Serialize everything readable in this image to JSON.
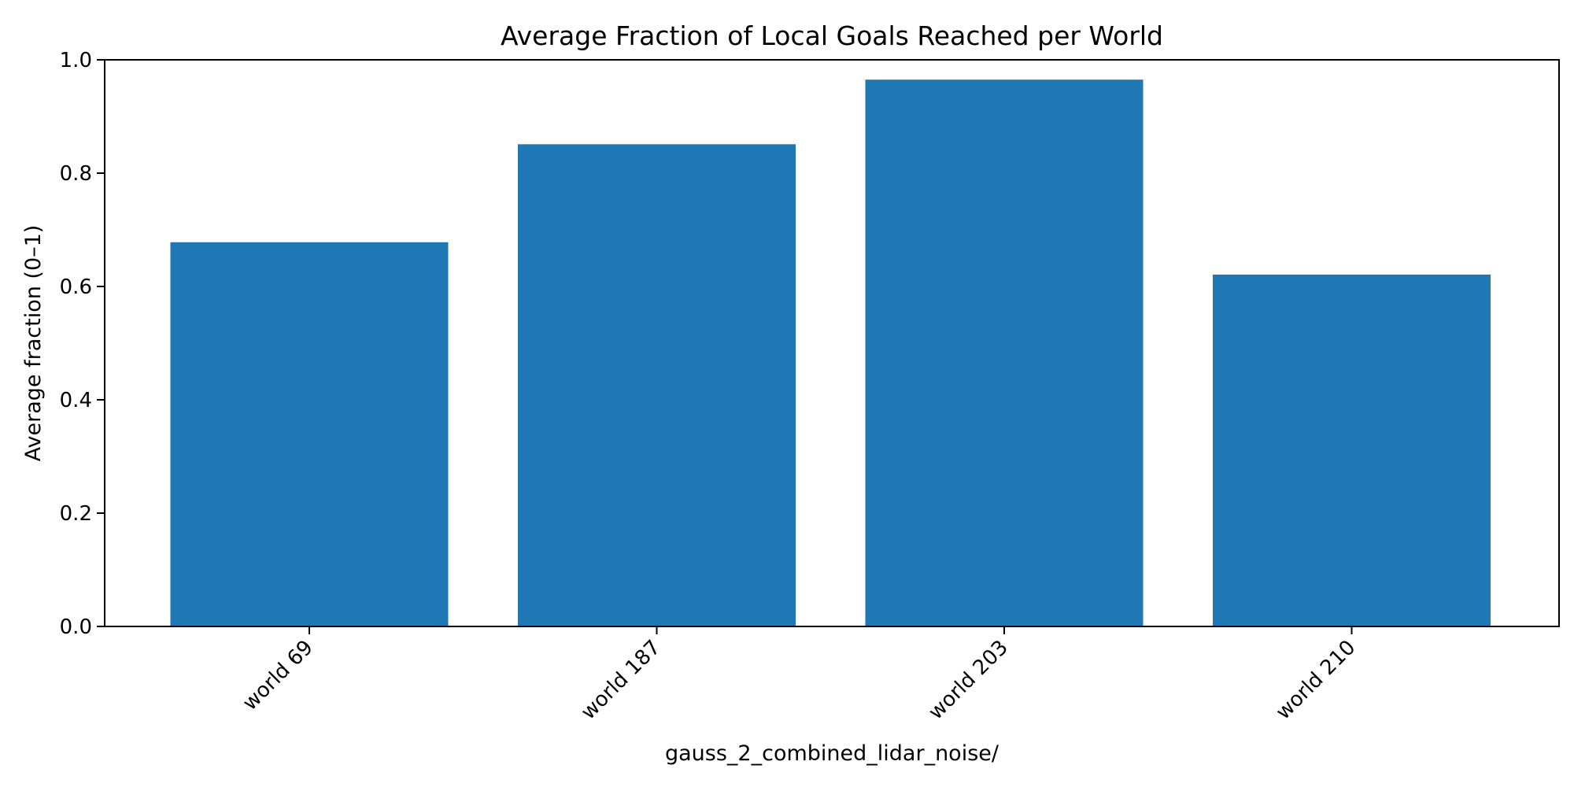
{
  "chart_data": {
    "type": "bar",
    "title": "Average Fraction of Local Goals Reached per World",
    "xlabel": "gauss_2_combined_lidar_noise/",
    "ylabel": "Average fraction (0–1)",
    "categories": [
      "world 69",
      "world 187",
      "world 203",
      "world 210"
    ],
    "values": [
      0.678,
      0.851,
      0.965,
      0.621
    ],
    "ylim": [
      0,
      1.0
    ],
    "yticks": [
      "0.0",
      "0.2",
      "0.4",
      "0.6",
      "0.8",
      "1.0"
    ],
    "bar_color": "#1f77b4",
    "grid": false,
    "legend": false
  }
}
